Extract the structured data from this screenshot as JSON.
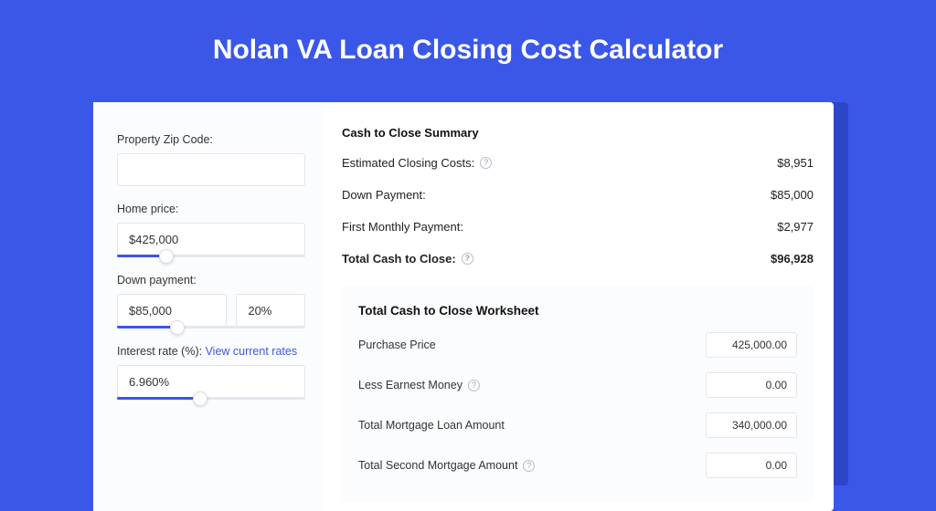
{
  "colors": {
    "page_bg": "#3a57e8",
    "panel_shadow": "#2d46c8",
    "panel_bg": "#ffffff",
    "soft_bg": "#fbfcfe",
    "border": "#e2e5ea",
    "text": "#333333",
    "link": "#3a57e8",
    "slider_track": "#e4e7ee",
    "slider_fill": "#3a57e8"
  },
  "title": "Nolan VA Loan Closing Cost Calculator",
  "form": {
    "zip": {
      "label": "Property Zip Code:",
      "value": ""
    },
    "home_price": {
      "label": "Home price:",
      "value": "$425,000",
      "fill_pct": 26
    },
    "down_payment": {
      "label": "Down payment:",
      "value": "$85,000",
      "pct_value": "20%",
      "fill_pct": 32
    },
    "interest_rate": {
      "label": "Interest rate (%): ",
      "link_text": "View current rates",
      "value": "6.960%",
      "fill_pct": 44
    }
  },
  "summary": {
    "title": "Cash to Close Summary",
    "rows": [
      {
        "label": "Estimated Closing Costs:",
        "help": true,
        "value": "$8,951",
        "bold": false
      },
      {
        "label": "Down Payment:",
        "help": false,
        "value": "$85,000",
        "bold": false
      },
      {
        "label": "First Monthly Payment:",
        "help": false,
        "value": "$2,977",
        "bold": false
      },
      {
        "label": "Total Cash to Close:",
        "help": true,
        "value": "$96,928",
        "bold": true
      }
    ]
  },
  "worksheet": {
    "title": "Total Cash to Close Worksheet",
    "rows": [
      {
        "label": "Purchase Price",
        "help": false,
        "value": "425,000.00"
      },
      {
        "label": "Less Earnest Money",
        "help": true,
        "value": "0.00"
      },
      {
        "label": "Total Mortgage Loan Amount",
        "help": false,
        "value": "340,000.00"
      },
      {
        "label": "Total Second Mortgage Amount",
        "help": true,
        "value": "0.00"
      }
    ]
  }
}
